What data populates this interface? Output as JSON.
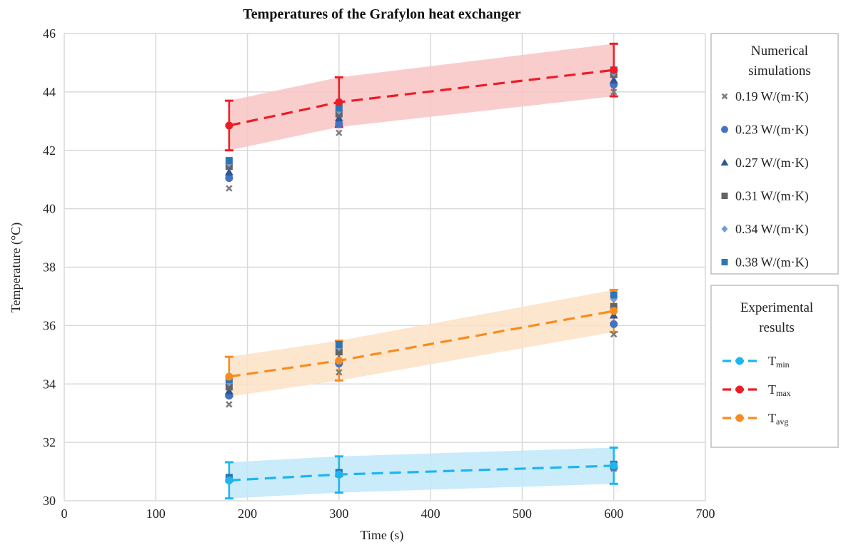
{
  "chart_data": {
    "type": "scatter",
    "title": "Temperatures of the Grafylon heat exchanger",
    "xlabel": "Time (s)",
    "ylabel": "Temperature (°C)",
    "xlim": [
      0,
      700
    ],
    "ylim": [
      30,
      46
    ],
    "xticks": [
      "0",
      "100",
      "200",
      "300",
      "400",
      "500",
      "600",
      "700"
    ],
    "yticks": [
      "30",
      "32",
      "34",
      "36",
      "38",
      "40",
      "42",
      "44",
      "46"
    ],
    "grid": true,
    "x": [
      180,
      300,
      600
    ],
    "legend_groups": [
      {
        "title_lines": [
          "Numerical",
          "simulations"
        ],
        "placement": "right-top"
      },
      {
        "title_lines": [
          "Experimental",
          "results"
        ],
        "placement": "right-middle"
      }
    ],
    "simulation_series": [
      {
        "name": "0.19 W/(m·K)",
        "marker": "x",
        "color": "#7f7f7f",
        "values": {
          "max": [
            40.7,
            42.6,
            44.0
          ],
          "avg": [
            33.3,
            34.4,
            35.7
          ],
          "min": [
            30.7,
            30.9,
            31.1
          ]
        }
      },
      {
        "name": "0.23 W/(m·K)",
        "marker": "circle",
        "color": "#4472c4",
        "values": {
          "max": [
            41.05,
            42.9,
            44.25
          ],
          "avg": [
            33.6,
            34.7,
            36.05
          ],
          "min": [
            30.7,
            30.9,
            31.15
          ]
        }
      },
      {
        "name": "0.27 W/(m·K)",
        "marker": "triangle",
        "color": "#2f5597",
        "values": {
          "max": [
            41.25,
            43.1,
            44.4
          ],
          "avg": [
            33.75,
            34.85,
            36.35
          ],
          "min": [
            30.75,
            30.92,
            31.18
          ]
        }
      },
      {
        "name": "0.31 W/(m·K)",
        "marker": "square",
        "color": "#636363",
        "values": {
          "max": [
            41.45,
            43.25,
            44.6
          ],
          "avg": [
            33.9,
            35.1,
            36.65
          ],
          "min": [
            30.75,
            30.95,
            31.2
          ]
        }
      },
      {
        "name": "0.34 W/(m·K)",
        "marker": "diamond",
        "color": "#7399d6",
        "values": {
          "max": [
            41.55,
            43.35,
            44.65
          ],
          "avg": [
            34.05,
            35.25,
            36.9
          ],
          "min": [
            30.78,
            30.95,
            31.22
          ]
        }
      },
      {
        "name": "0.38 W/(m·K)",
        "marker": "square",
        "color": "#2e75b6",
        "values": {
          "max": [
            41.65,
            43.45,
            44.75
          ],
          "avg": [
            34.15,
            35.35,
            37.05
          ],
          "min": [
            30.8,
            30.97,
            31.25
          ]
        }
      }
    ],
    "experimental_series": [
      {
        "name": "T",
        "sub": "min",
        "color": "#1cb5f0",
        "band_color": "#bfe7f9",
        "values": [
          30.7,
          30.9,
          31.2
        ],
        "error": [
          0.62,
          0.62,
          0.62
        ]
      },
      {
        "name": "T",
        "sub": "max",
        "color": "#ee1c25",
        "band_color": "#f9c4c4",
        "values": [
          42.85,
          43.65,
          44.75
        ],
        "error": [
          0.85,
          0.85,
          0.9
        ]
      },
      {
        "name": "T",
        "sub": "avg",
        "color": "#f78c1e",
        "band_color": "#fde2c6",
        "values": [
          34.25,
          34.8,
          36.5
        ],
        "error": [
          0.68,
          0.68,
          0.72
        ]
      }
    ]
  }
}
